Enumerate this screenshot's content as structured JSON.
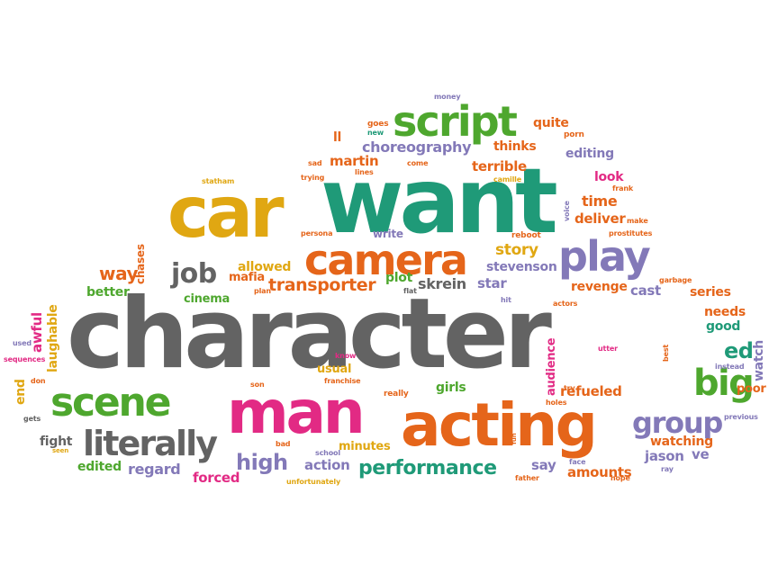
{
  "colors": {
    "gray": "#636363",
    "green": "#4ea72e",
    "teal": "#1f9a78",
    "orange": "#e5651a",
    "gold": "#e0a712",
    "magenta": "#e22a84",
    "purple": "#8379b8",
    "red": "#d93a2c"
  },
  "words": [
    {
      "text": "character",
      "color": "gray"
    },
    {
      "text": "want",
      "color": "teal"
    },
    {
      "text": "car",
      "color": "gold"
    },
    {
      "text": "acting",
      "color": "orange"
    },
    {
      "text": "man",
      "color": "magenta"
    },
    {
      "text": "scene",
      "color": "green"
    },
    {
      "text": "script",
      "color": "green"
    },
    {
      "text": "camera",
      "color": "orange"
    },
    {
      "text": "play",
      "color": "purple"
    },
    {
      "text": "big",
      "color": "green"
    },
    {
      "text": "literally",
      "color": "gray"
    },
    {
      "text": "group",
      "color": "purple"
    },
    {
      "text": "performance",
      "color": "teal"
    },
    {
      "text": "job",
      "color": "gray"
    },
    {
      "text": "high",
      "color": "purple"
    },
    {
      "text": "transporter",
      "color": "orange"
    },
    {
      "text": "choreography",
      "color": "purple"
    },
    {
      "text": "ed",
      "color": "teal"
    },
    {
      "text": "story",
      "color": "gold"
    },
    {
      "text": "way",
      "color": "orange"
    },
    {
      "text": "refueled",
      "color": "orange"
    },
    {
      "text": "amounts",
      "color": "orange"
    },
    {
      "text": "regard",
      "color": "purple"
    },
    {
      "text": "deliver",
      "color": "orange"
    },
    {
      "text": "time",
      "color": "orange"
    },
    {
      "text": "stevenson",
      "color": "purple"
    },
    {
      "text": "jason",
      "color": "purple"
    },
    {
      "text": "martin",
      "color": "orange"
    },
    {
      "text": "terrible",
      "color": "orange"
    },
    {
      "text": "editing",
      "color": "purple"
    },
    {
      "text": "look",
      "color": "magenta"
    },
    {
      "text": "allowed",
      "color": "gold"
    },
    {
      "text": "mafia",
      "color": "orange"
    },
    {
      "text": "cinema",
      "color": "green"
    },
    {
      "text": "better",
      "color": "green"
    },
    {
      "text": "skrein",
      "color": "gray"
    },
    {
      "text": "star",
      "color": "purple"
    },
    {
      "text": "plot",
      "color": "green"
    },
    {
      "text": "revenge",
      "color": "orange"
    },
    {
      "text": "cast",
      "color": "purple"
    },
    {
      "text": "series",
      "color": "orange"
    },
    {
      "text": "needs",
      "color": "orange"
    },
    {
      "text": "good",
      "color": "teal"
    },
    {
      "text": "watching",
      "color": "orange"
    },
    {
      "text": "ve",
      "color": "purple"
    },
    {
      "text": "say",
      "color": "purple"
    },
    {
      "text": "action",
      "color": "purple"
    },
    {
      "text": "forced",
      "color": "magenta"
    },
    {
      "text": "edited",
      "color": "green"
    },
    {
      "text": "fight",
      "color": "gray"
    },
    {
      "text": "minutes",
      "color": "gold"
    },
    {
      "text": "usual",
      "color": "gold"
    },
    {
      "text": "girls",
      "color": "green"
    },
    {
      "text": "poor",
      "color": "orange"
    },
    {
      "text": "thinks",
      "color": "orange"
    },
    {
      "text": "quite",
      "color": "orange"
    },
    {
      "text": "write",
      "color": "purple"
    },
    {
      "text": "ll",
      "color": "orange"
    },
    {
      "text": "chases",
      "color": "orange"
    },
    {
      "text": "laughable",
      "color": "gold"
    },
    {
      "text": "awful",
      "color": "magenta"
    },
    {
      "text": "audience",
      "color": "magenta"
    },
    {
      "text": "watch",
      "color": "purple"
    },
    {
      "text": "end",
      "color": "gold"
    },
    {
      "text": "money",
      "color": "purple"
    },
    {
      "text": "goes",
      "color": "orange"
    },
    {
      "text": "new",
      "color": "teal"
    },
    {
      "text": "porn",
      "color": "orange"
    },
    {
      "text": "sad",
      "color": "orange"
    },
    {
      "text": "trying",
      "color": "orange"
    },
    {
      "text": "lines",
      "color": "orange"
    },
    {
      "text": "come",
      "color": "orange"
    },
    {
      "text": "camille",
      "color": "gold"
    },
    {
      "text": "frank",
      "color": "orange"
    },
    {
      "text": "statham",
      "color": "gold"
    },
    {
      "text": "persona",
      "color": "orange"
    },
    {
      "text": "reboot",
      "color": "orange"
    },
    {
      "text": "make",
      "color": "orange"
    },
    {
      "text": "prostitutes",
      "color": "orange"
    },
    {
      "text": "voice",
      "color": "purple"
    },
    {
      "text": "plan",
      "color": "orange"
    },
    {
      "text": "flat",
      "color": "gray"
    },
    {
      "text": "hit",
      "color": "purple"
    },
    {
      "text": "actors",
      "color": "orange"
    },
    {
      "text": "garbage",
      "color": "orange"
    },
    {
      "text": "used",
      "color": "purple"
    },
    {
      "text": "sequences",
      "color": "magenta"
    },
    {
      "text": "don",
      "color": "orange"
    },
    {
      "text": "gets",
      "color": "gray"
    },
    {
      "text": "seen",
      "color": "gold"
    },
    {
      "text": "son",
      "color": "orange"
    },
    {
      "text": "franchise",
      "color": "orange"
    },
    {
      "text": "know",
      "color": "magenta"
    },
    {
      "text": "really",
      "color": "orange"
    },
    {
      "text": "holes",
      "color": "orange"
    },
    {
      "text": "try",
      "color": "orange"
    },
    {
      "text": "bad",
      "color": "orange"
    },
    {
      "text": "school",
      "color": "purple"
    },
    {
      "text": "unfortunately",
      "color": "gold"
    },
    {
      "text": "fun",
      "color": "orange"
    },
    {
      "text": "face",
      "color": "purple"
    },
    {
      "text": "father",
      "color": "orange"
    },
    {
      "text": "hope",
      "color": "orange"
    },
    {
      "text": "ray",
      "color": "purple"
    },
    {
      "text": "previous",
      "color": "purple"
    },
    {
      "text": "instead",
      "color": "purple"
    },
    {
      "text": "best",
      "color": "orange"
    },
    {
      "text": "utter",
      "color": "magenta"
    }
  ]
}
